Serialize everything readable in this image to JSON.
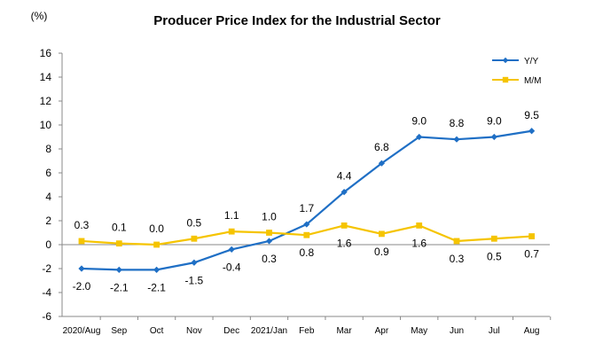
{
  "chart_data": {
    "type": "line",
    "title": "Producer Price Index for the Industrial Sector",
    "unit_label": "(%)",
    "xlabel": "",
    "ylabel": "",
    "ylim": [
      -6,
      16
    ],
    "yticks": [
      16,
      14,
      12,
      10,
      8,
      6,
      4,
      2,
      0,
      -2,
      -4,
      -6
    ],
    "categories": [
      "2020/Aug",
      "Sep",
      "Oct",
      "Nov",
      "Dec",
      "2021/Jan",
      "Feb",
      "Mar",
      "Apr",
      "May",
      "Jun",
      "Jul",
      "Aug"
    ],
    "legend_position": "top-right",
    "grid": false,
    "series": [
      {
        "name": "Y/Y",
        "color": "#1F6FC5",
        "marker": "diamond",
        "values": [
          -2.0,
          -2.1,
          -2.1,
          -1.5,
          -0.4,
          0.3,
          1.7,
          4.4,
          6.8,
          9.0,
          8.8,
          9.0,
          9.5
        ],
        "labels": [
          "-2.0",
          "-2.1",
          "-2.1",
          "-1.5",
          "-0.4",
          "0.3",
          "1.7",
          "4.4",
          "6.8",
          "9.0",
          "8.8",
          "9.0",
          "9.5"
        ],
        "label_side": [
          "below",
          "below",
          "below",
          "below",
          "below",
          "below",
          "above",
          "above",
          "above",
          "above",
          "above",
          "above",
          "above"
        ]
      },
      {
        "name": "M/M",
        "color": "#F5C400",
        "marker": "square",
        "values": [
          0.3,
          0.1,
          0.0,
          0.5,
          1.1,
          1.0,
          0.8,
          1.6,
          0.9,
          1.6,
          0.3,
          0.5,
          0.7
        ],
        "labels": [
          "0.3",
          "0.1",
          "0.0",
          "0.5",
          "1.1",
          "1.0",
          "0.8",
          "1.6",
          "0.9",
          "1.6",
          "0.3",
          "0.5",
          "0.7"
        ],
        "label_side": [
          "above",
          "above",
          "above",
          "above",
          "above",
          "above",
          "below",
          "below",
          "below",
          "below",
          "below",
          "below",
          "below"
        ]
      }
    ]
  }
}
